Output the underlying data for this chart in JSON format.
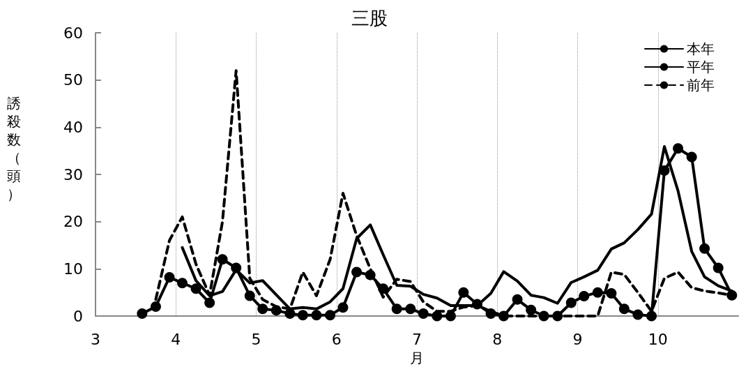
{
  "chart_data": {
    "type": "line",
    "title": "三股",
    "xlabel": "月",
    "ylabel": "誘殺数（頭）",
    "x": [
      3.58,
      3.75,
      3.92,
      4.08,
      4.25,
      4.42,
      4.58,
      4.75,
      4.92,
      5.08,
      5.25,
      5.42,
      5.58,
      5.75,
      5.92,
      6.08,
      6.25,
      6.42,
      6.58,
      6.75,
      6.92,
      7.08,
      7.25,
      7.42,
      7.58,
      7.75,
      7.92,
      8.08,
      8.25,
      8.42,
      8.58,
      8.75,
      8.92,
      9.08,
      9.25,
      9.42,
      9.58,
      9.75,
      9.92,
      10.08,
      10.25,
      10.42,
      10.58,
      10.75,
      10.92
    ],
    "series": [
      {
        "name": "本年",
        "color": "#000000",
        "marker": "circle",
        "line_style": "solid",
        "values": [
          0.5,
          2,
          8.2,
          7,
          5.8,
          2.8,
          12,
          10.2,
          4.3,
          1.5,
          1.2,
          0.5,
          0.2,
          0.2,
          0.2,
          1.8,
          9.3,
          8.7,
          5.8,
          1.5,
          1.5,
          0.5,
          0,
          0,
          5,
          2.5,
          0.5,
          0,
          3.5,
          1.3,
          0,
          0,
          2.8,
          4.2,
          5,
          4.8,
          1.5,
          0.3,
          0,
          30.8,
          35.5,
          33.7,
          14.3,
          10.2,
          4.4
        ]
      },
      {
        "name": "平年",
        "color": "#000000",
        "marker": "none",
        "line_style": "solid",
        "values": [
          null,
          null,
          null,
          14.5,
          7.5,
          4.3,
          5.2,
          9.8,
          7,
          7.5,
          4.5,
          1.5,
          1.8,
          1.5,
          3,
          5.8,
          16.4,
          19.3,
          13,
          6.5,
          6.3,
          4.6,
          3.8,
          2.2,
          2.2,
          2.2,
          4.8,
          9.4,
          7.4,
          4.4,
          3.9,
          2.7,
          7.1,
          8.3,
          9.7,
          14.2,
          15.5,
          18.3,
          21.6,
          35.9,
          26.5,
          13.7,
          8.3,
          6.4,
          5.3
        ]
      },
      {
        "name": "前年",
        "color": "#000000",
        "marker": "none",
        "line_style": "dashed",
        "values": [
          null,
          3.5,
          16,
          21,
          11,
          4.4,
          20,
          52,
          8,
          3.5,
          2,
          1.5,
          9.3,
          4.3,
          12,
          26,
          17,
          10,
          4,
          7.8,
          7.3,
          3,
          1,
          1,
          1.9,
          2.2,
          1,
          0,
          0,
          0,
          0,
          0,
          0,
          0,
          0,
          9.3,
          8.8,
          5,
          1,
          8,
          9.3,
          6,
          5.3,
          4.9,
          4.4
        ]
      }
    ],
    "xlim": [
      3,
      11
    ],
    "xticks": [
      3,
      4,
      5,
      6,
      7,
      8,
      9,
      10
    ],
    "ylim": [
      0,
      60
    ],
    "yticks": [
      0,
      10,
      20,
      30,
      40,
      50,
      60
    ],
    "grid": "x",
    "legend": "top right"
  }
}
